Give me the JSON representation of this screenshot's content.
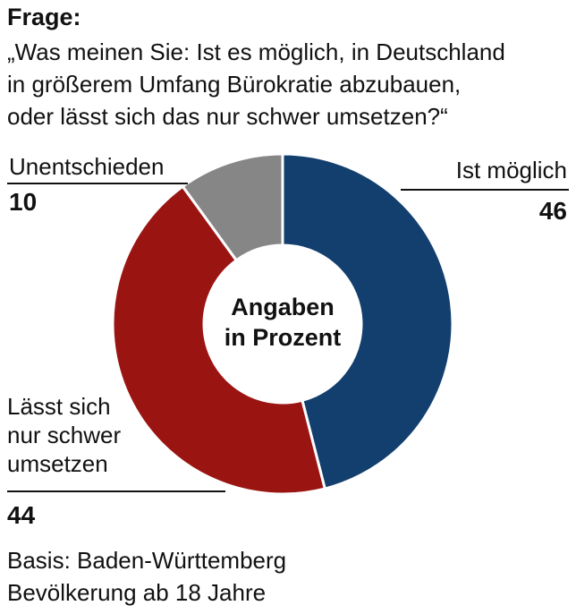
{
  "header": {
    "frage": "Frage:",
    "question_lines": [
      "„Was meinen Sie: Ist es möglich, in Deutschland",
      "in größerem Umfang Bürokratie abzubauen,",
      "oder lässt sich das nur schwer umsetzen?“"
    ]
  },
  "chart_data": {
    "type": "pie",
    "donut": true,
    "center_label": [
      "Angaben",
      "in Prozent"
    ],
    "slices": [
      {
        "label": "Ist möglich",
        "value": 46,
        "color": "#123f6e"
      },
      {
        "label": "Lässt sich nur schwer umsetzen",
        "label_lines": [
          "Lässt sich",
          "nur schwer",
          "umsetzen"
        ],
        "value": 44,
        "color": "#9a1512"
      },
      {
        "label": "Unentschieden",
        "value": 10,
        "color": "#868686"
      }
    ]
  },
  "footer": {
    "basis_lines": [
      "Basis: Baden-Württemberg",
      "Bevölkerung ab 18 Jahre"
    ]
  }
}
